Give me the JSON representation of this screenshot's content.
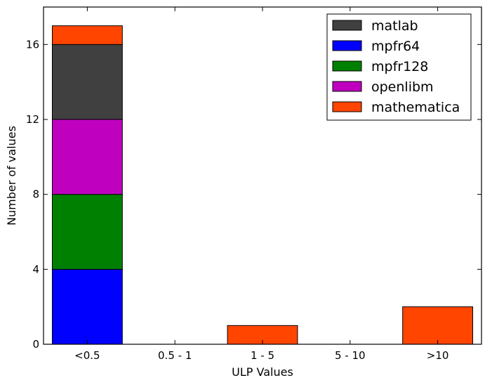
{
  "chart_data": {
    "type": "bar",
    "stacked": true,
    "categories": [
      "<0.5",
      "0.5 - 1",
      "1 - 5",
      "5 - 10",
      ">10"
    ],
    "series": [
      {
        "name": "mpfr64",
        "color": "#0000ff",
        "values": [
          4,
          0,
          0,
          0,
          0
        ]
      },
      {
        "name": "mpfr128",
        "color": "#008000",
        "values": [
          4,
          0,
          0,
          0,
          0
        ]
      },
      {
        "name": "openlibm",
        "color": "#bf00bf",
        "values": [
          4,
          0,
          0,
          0,
          0
        ]
      },
      {
        "name": "matlab",
        "color": "#404040",
        "values": [
          4,
          0,
          0,
          0,
          0
        ]
      },
      {
        "name": "mathematica",
        "color": "#ff4500",
        "values": [
          1,
          0,
          1,
          0,
          2
        ]
      }
    ],
    "legend_order": [
      "matlab",
      "mpfr64",
      "mpfr128",
      "openlibm",
      "mathematica"
    ],
    "legend_position": "top-right",
    "xlabel": "ULP Values",
    "ylabel": "Number of values",
    "ylim": [
      0,
      18
    ],
    "yticks": [
      0,
      4,
      8,
      12,
      16
    ],
    "grid": false
  }
}
